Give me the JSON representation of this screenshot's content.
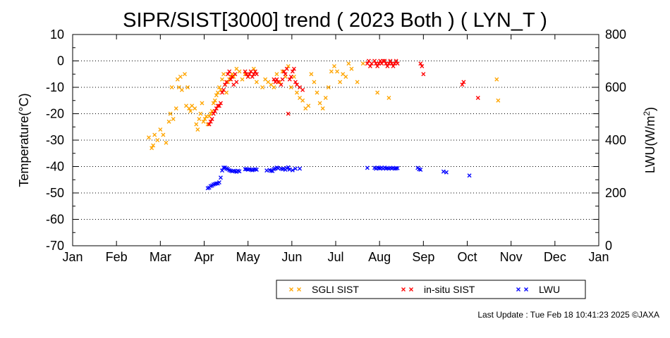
{
  "chart_data": {
    "type": "scatter",
    "title": "SIPR/SIST[3000] trend ( 2023 Both ) ( LYN_T )",
    "xlabel": "",
    "ylabel": "Temperature(°C)",
    "y2label_prefix": "LWU(W/m",
    "y2label_sup": "2",
    "y2label_suffix": ")",
    "x_tick_labels": [
      "Jan",
      "Feb",
      "Mar",
      "Apr",
      "May",
      "Jun",
      "Jul",
      "Aug",
      "Sep",
      "Oct",
      "Nov",
      "Dec",
      "Jan"
    ],
    "xlim_days": [
      0,
      366
    ],
    "ylim": [
      -70,
      10
    ],
    "y_ticks": [
      "10",
      "0",
      "-10",
      "-20",
      "-30",
      "-40",
      "-50",
      "-60",
      "-70"
    ],
    "y2lim": [
      0,
      800
    ],
    "y2_ticks": [
      "800",
      "600",
      "400",
      "200",
      "0"
    ],
    "grid": "dotted horizontal",
    "legend_placement": "bottom-center",
    "footer": "Last Update : Tue Feb 18 10:41:23 2025  ©JAXA",
    "series": [
      {
        "name": "SGLI SIST",
        "color": "#ffa500",
        "marker": "x",
        "x_day": [
          53,
          55,
          56,
          57,
          59,
          61,
          63,
          65,
          67,
          68,
          69,
          70,
          72,
          73,
          74,
          75,
          76,
          78,
          79,
          80,
          81,
          82,
          83,
          85,
          86,
          87,
          88,
          89,
          90,
          91,
          92,
          93,
          94,
          95,
          96,
          97,
          98,
          99,
          100,
          101,
          102,
          103,
          104,
          105,
          106,
          107,
          108,
          109,
          110,
          111,
          112,
          114,
          116,
          118,
          120,
          122,
          124,
          126,
          128,
          132,
          134,
          136,
          138,
          140,
          142,
          144,
          146,
          148,
          150,
          152,
          154,
          156,
          158,
          160,
          162,
          164,
          166,
          168,
          170,
          172,
          174,
          176,
          178,
          180,
          182,
          184,
          186,
          188,
          190,
          192,
          194,
          198,
          202,
          212,
          220,
          295,
          296
        ],
        "y": [
          -29,
          -33,
          -32,
          -28,
          -30,
          -26,
          -28,
          -31,
          -23,
          -20,
          -10,
          -22,
          -18,
          -7,
          -10,
          -6,
          -11,
          -5,
          -17,
          -10,
          -18,
          -19,
          -17,
          -18,
          -24,
          -26,
          -22,
          -20,
          -16,
          -23,
          -22,
          -21,
          -24,
          -21,
          -20,
          -19,
          -16,
          -15,
          -13,
          -12,
          -10,
          -11,
          -7,
          -5,
          -9,
          -12,
          -8,
          -7,
          -6,
          -5,
          -6,
          -3,
          -4,
          -7,
          -5,
          -6,
          -4,
          -3,
          -8,
          -10,
          -7,
          -8,
          -9,
          -10,
          -5,
          -8,
          -4,
          -6,
          -2,
          -10,
          -6,
          -12,
          -14,
          -15,
          -18,
          -17,
          -5,
          -8,
          -12,
          -16,
          -18,
          -14,
          -10,
          -4,
          -2,
          -4,
          -8,
          -5,
          -6,
          -1,
          -3,
          -8,
          -1,
          -12,
          -14,
          -7,
          -15
        ]
      },
      {
        "name": "in-situ SIST",
        "color": "#ff0000",
        "marker": "x",
        "x_day": [
          95,
          96,
          97,
          98,
          99,
          100,
          101,
          102,
          103,
          104,
          105,
          106,
          107,
          108,
          109,
          110,
          111,
          112,
          113,
          114,
          120,
          121,
          122,
          123,
          124,
          125,
          126,
          127,
          128,
          140,
          141,
          142,
          143,
          145,
          146,
          147,
          148,
          149,
          150,
          151,
          152,
          153,
          154,
          155,
          156,
          158,
          160,
          205,
          206,
          207,
          208,
          210,
          211,
          212,
          213,
          214,
          215,
          216,
          217,
          218,
          219,
          220,
          221,
          222,
          223,
          224,
          225,
          226,
          242,
          243,
          244,
          271,
          272,
          282
        ],
        "y": [
          -24,
          -23,
          -22,
          -20,
          -19,
          -18,
          -17,
          -17,
          -16,
          -12,
          -11,
          -9,
          -8,
          -5,
          -4,
          -7,
          -6,
          -9,
          -5,
          -8,
          -4,
          -5,
          -6,
          -5,
          -4,
          -6,
          -5,
          -4,
          -5,
          -7,
          -8,
          -7,
          -8,
          -9,
          -7,
          -4,
          -5,
          -3,
          -20,
          -7,
          -6,
          -4,
          -3,
          -8,
          -9,
          -10,
          -11,
          -1,
          0,
          -2,
          -1,
          0,
          -1,
          -2,
          -1,
          0,
          -1,
          0,
          0,
          -1,
          -2,
          -1,
          0,
          -1,
          -2,
          -1,
          0,
          -1,
          -1,
          -2,
          -5,
          -9,
          -8,
          -14
        ]
      },
      {
        "name": "LWU",
        "color": "#0000ff",
        "marker": "x",
        "x_day": [
          94,
          95,
          96,
          97,
          98,
          99,
          100,
          101,
          102,
          103,
          104,
          105,
          106,
          107,
          108,
          109,
          110,
          111,
          112,
          113,
          114,
          115,
          116,
          120,
          121,
          122,
          123,
          124,
          125,
          126,
          127,
          128,
          135,
          137,
          138,
          139,
          140,
          141,
          142,
          143,
          145,
          146,
          147,
          148,
          149,
          150,
          151,
          153,
          155,
          158,
          205,
          210,
          211,
          212,
          213,
          214,
          215,
          216,
          217,
          218,
          219,
          220,
          221,
          222,
          223,
          224,
          225,
          226,
          240,
          241,
          242,
          258,
          260,
          276
        ],
        "y": [
          218,
          220,
          226,
          228,
          232,
          234,
          236,
          236,
          240,
          258,
          285,
          296,
          296,
          292,
          290,
          286,
          284,
          282,
          284,
          282,
          280,
          284,
          282,
          290,
          290,
          288,
          290,
          288,
          286,
          288,
          290,
          288,
          285,
          287,
          284,
          283,
          290,
          292,
          296,
          294,
          292,
          290,
          292,
          288,
          294,
          297,
          289,
          286,
          292,
          292,
          295,
          295,
          292,
          296,
          294,
          293,
          296,
          292,
          296,
          293,
          294,
          292,
          295,
          293,
          295,
          292,
          293,
          294,
          295,
          290,
          288,
          281,
          278,
          266
        ]
      }
    ]
  }
}
